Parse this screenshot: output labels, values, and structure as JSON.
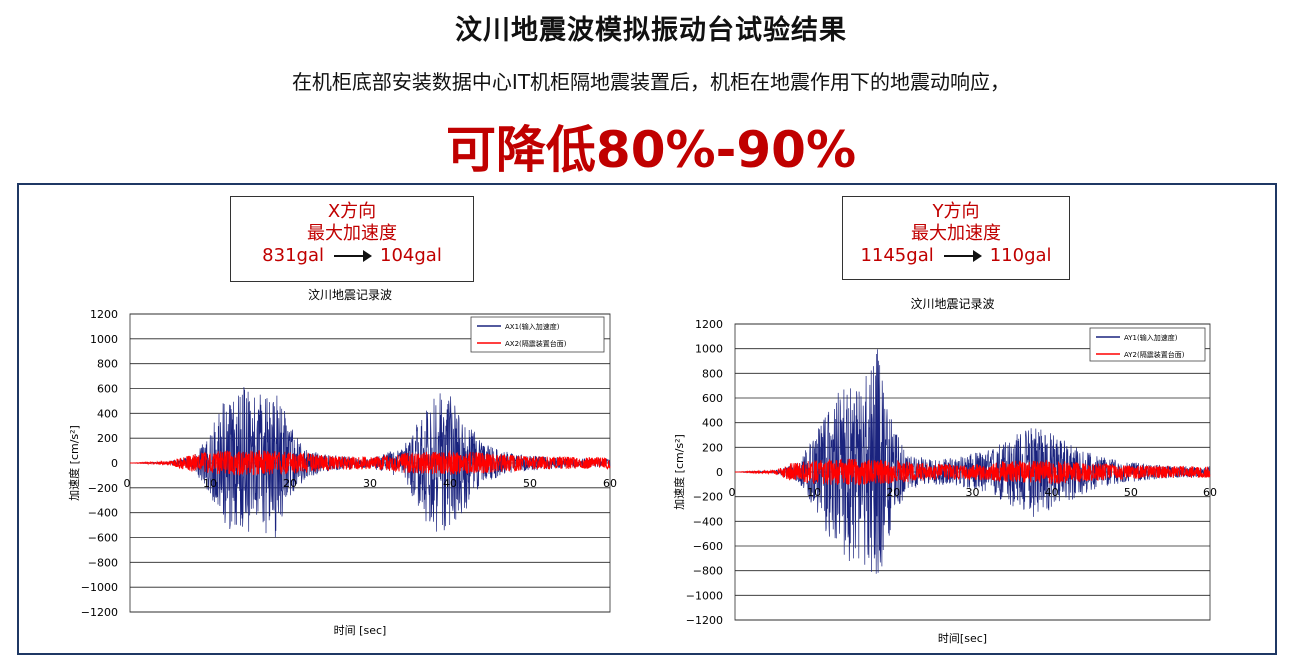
{
  "header": {
    "title": "汶川地震波模拟振动台试验结果",
    "subtitle": "在机柜底部安装数据中心IT机柜隔地震装置后，机柜在地震作用下的地震动响应，",
    "highlight": "可降低80%-90%"
  },
  "callouts": [
    {
      "direction": "X方向",
      "label": "最大加速度",
      "from": "831gal",
      "to": "104gal"
    },
    {
      "direction": "Y方向",
      "label": "最大加速度",
      "from": "1145gal",
      "to": "110gal"
    }
  ],
  "colors": {
    "input": "#1a237e",
    "isolated": "#ff0000",
    "border": "#1f3864",
    "accent": "#c00000"
  },
  "chart_data": [
    {
      "type": "line",
      "title": "汶川地震记录波",
      "xlabel": "时间 [sec]",
      "ylabel": "加速度 [cm/s²]",
      "xlim": [
        0,
        60
      ],
      "ylim": [
        -1200,
        1200
      ],
      "xticks": [
        "0",
        "10",
        "20",
        "30",
        "40",
        "50",
        "60"
      ],
      "yticks": [
        "1200",
        "1000",
        "800",
        "600",
        "400",
        "200",
        "0",
        "−200",
        "−400",
        "−600",
        "−800",
        "−1000",
        "−1200"
      ],
      "legend_position": "top-right",
      "series": [
        {
          "name": "AX1(输入加速度)",
          "color": "#1a237e",
          "peak_max": 831,
          "peak_min": -720,
          "envelope": [
            [
              0,
              0
            ],
            [
              5,
              10
            ],
            [
              8,
              60
            ],
            [
              10,
              250
            ],
            [
              12,
              550
            ],
            [
              14,
              620
            ],
            [
              16,
              560
            ],
            [
              18,
              650
            ],
            [
              20,
              300
            ],
            [
              22,
              120
            ],
            [
              25,
              60
            ],
            [
              30,
              40
            ],
            [
              34,
              120
            ],
            [
              36,
              350
            ],
            [
              38,
              600
            ],
            [
              40,
              560
            ],
            [
              42,
              380
            ],
            [
              44,
              160
            ],
            [
              48,
              70
            ],
            [
              55,
              40
            ],
            [
              60,
              30
            ]
          ]
        },
        {
          "name": "AX2(隔震装置台面)",
          "color": "#ff0000",
          "peak_max": 104,
          "peak_min": -100,
          "envelope": [
            [
              0,
              0
            ],
            [
              5,
              15
            ],
            [
              7,
              60
            ],
            [
              10,
              95
            ],
            [
              15,
              104
            ],
            [
              20,
              95
            ],
            [
              25,
              60
            ],
            [
              30,
              50
            ],
            [
              35,
              85
            ],
            [
              40,
              100
            ],
            [
              45,
              80
            ],
            [
              50,
              55
            ],
            [
              55,
              50
            ],
            [
              60,
              45
            ]
          ]
        }
      ]
    },
    {
      "type": "line",
      "title": "汶川地震记录波",
      "xlabel": "时间[sec]",
      "ylabel": "加速度 [cm/s²]",
      "xlim": [
        0,
        60
      ],
      "ylim": [
        -1200,
        1200
      ],
      "xticks": [
        "0",
        "10",
        "20",
        "30",
        "40",
        "50",
        "60"
      ],
      "yticks": [
        "1200",
        "1000",
        "800",
        "600",
        "400",
        "200",
        "0",
        "−200",
        "−400",
        "−600",
        "−800",
        "−1000",
        "−1200"
      ],
      "legend_position": "top-right",
      "series": [
        {
          "name": "AY1(输入加速度)",
          "color": "#1a237e",
          "peak_max": 1145,
          "peak_min": -830,
          "envelope": [
            [
              0,
              0
            ],
            [
              5,
              10
            ],
            [
              8,
              80
            ],
            [
              10,
              300
            ],
            [
              12,
              550
            ],
            [
              14,
              750
            ],
            [
              16,
              700
            ],
            [
              18,
              1000
            ],
            [
              20,
              350
            ],
            [
              22,
              150
            ],
            [
              25,
              100
            ],
            [
              28,
              120
            ],
            [
              32,
              180
            ],
            [
              35,
              300
            ],
            [
              38,
              380
            ],
            [
              40,
              320
            ],
            [
              42,
              250
            ],
            [
              45,
              150
            ],
            [
              50,
              80
            ],
            [
              55,
              50
            ],
            [
              60,
              40
            ]
          ]
        },
        {
          "name": "AY2(隔震装置台面)",
          "color": "#ff0000",
          "peak_max": 110,
          "peak_min": -110,
          "envelope": [
            [
              0,
              0
            ],
            [
              5,
              15
            ],
            [
              7,
              70
            ],
            [
              10,
              100
            ],
            [
              15,
              110
            ],
            [
              20,
              95
            ],
            [
              25,
              65
            ],
            [
              30,
              60
            ],
            [
              35,
              90
            ],
            [
              40,
              100
            ],
            [
              45,
              75
            ],
            [
              50,
              55
            ],
            [
              55,
              50
            ],
            [
              60,
              45
            ]
          ]
        }
      ]
    }
  ]
}
